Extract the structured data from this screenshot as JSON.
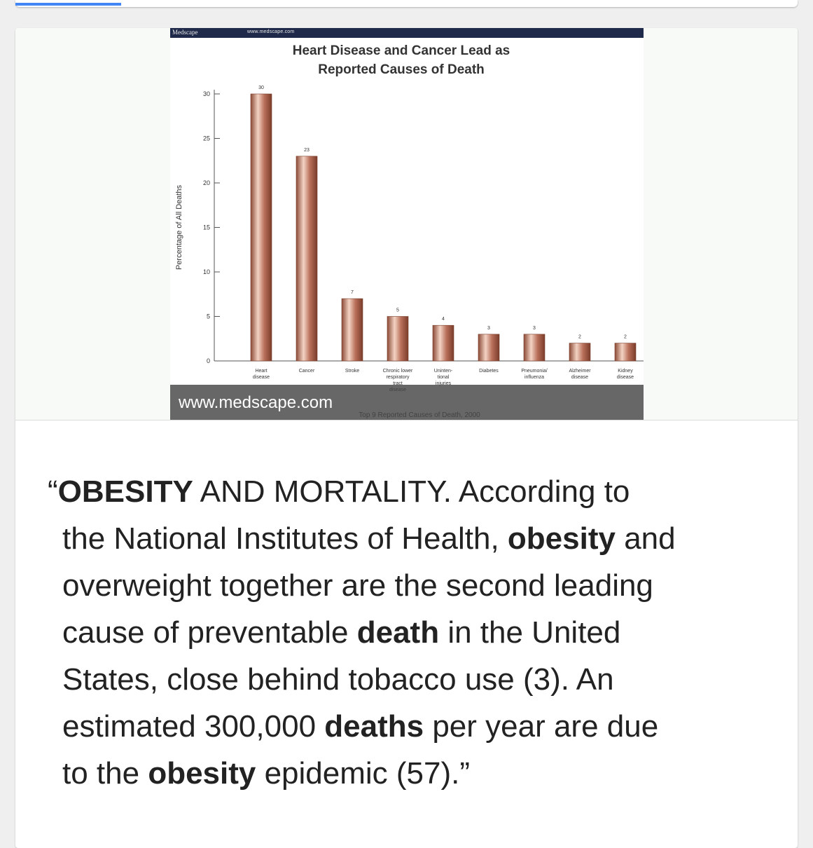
{
  "chart_header": {
    "brand": "Medscape",
    "url": "www.medscape.com"
  },
  "image_source": "www.medscape.com",
  "chart_data": {
    "type": "bar",
    "title": [
      "Heart Disease and Cancer Lead as",
      "Reported Causes of Death"
    ],
    "ylabel": "Percentage of All Deaths",
    "xlabel": "Top 9 Reported Causes of Death, 2000",
    "ylim": [
      0,
      30
    ],
    "yticks": [
      0,
      5,
      10,
      15,
      20,
      25,
      30
    ],
    "categories": [
      [
        "Heart",
        "disease"
      ],
      [
        "Cancer"
      ],
      [
        "Stroke"
      ],
      [
        "Chronic lower",
        "respiratory",
        "tract",
        "disease"
      ],
      [
        "Uninten-",
        "tional",
        "injuries"
      ],
      [
        "Diabetes"
      ],
      [
        "Pneumonia/",
        "influenza"
      ],
      [
        "Alzheimer",
        "disease"
      ],
      [
        "Kidney",
        "disease"
      ]
    ],
    "values": [
      30,
      23,
      7,
      5,
      4,
      3,
      3,
      2,
      2
    ],
    "bar_color": "#b9705a",
    "grid": false
  },
  "quote": {
    "lines": [
      [
        {
          "t": "“",
          "b": false
        },
        {
          "t": "OBESITY",
          "b": true
        },
        {
          "t": " AND MORTALITY. According to",
          "b": false
        }
      ],
      [
        {
          "t": "the National Institutes of Health, ",
          "b": false
        },
        {
          "t": "obesity",
          "b": true
        },
        {
          "t": " and",
          "b": false
        }
      ],
      [
        {
          "t": "overweight together are the second leading",
          "b": false
        }
      ],
      [
        {
          "t": "cause of preventable ",
          "b": false
        },
        {
          "t": "death",
          "b": true
        },
        {
          "t": " in the United",
          "b": false
        }
      ],
      [
        {
          "t": "States, close behind tobacco use (3). An",
          "b": false
        }
      ],
      [
        {
          "t": "estimated 300,000 ",
          "b": false
        },
        {
          "t": "deaths",
          "b": true
        },
        {
          "t": " per year are due",
          "b": false
        }
      ],
      [
        {
          "t": "to the ",
          "b": false
        },
        {
          "t": "obesity",
          "b": true
        },
        {
          "t": " epidemic (57).”",
          "b": false
        }
      ]
    ]
  },
  "colors": {
    "accent": "#4285f4",
    "text": "#222222",
    "chart_header": "#1f2a4a"
  }
}
